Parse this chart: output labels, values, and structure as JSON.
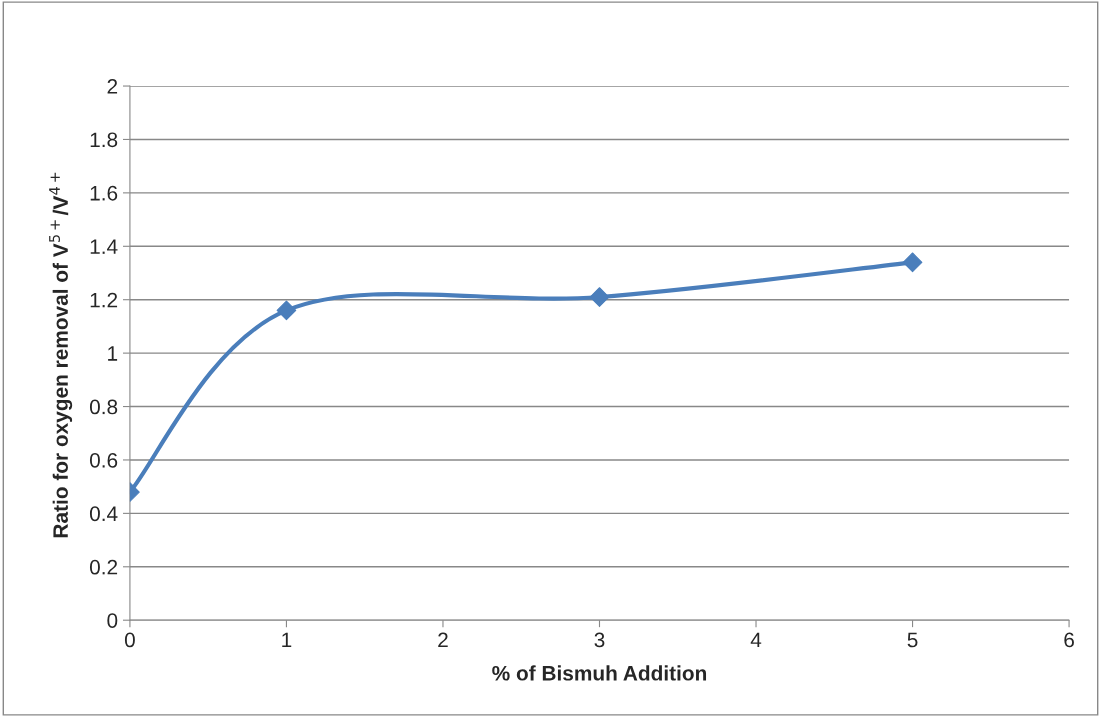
{
  "chart_data": {
    "type": "line",
    "xlabel": "% of Bismuh Addition",
    "ylabel": "Ratio for oxygen removal of V$^{5+}$/V$^{4+}$",
    "x": [
      0,
      1,
      3,
      5
    ],
    "series": [
      {
        "color": "#4a7ebb",
        "values": [
          0.48,
          1.16,
          1.21,
          1.34
        ]
      }
    ],
    "xlim": [
      0,
      6
    ],
    "xticks": [
      0,
      1,
      2,
      3,
      4,
      5,
      6
    ],
    "ylim": [
      0,
      2
    ],
    "yticks": [
      0,
      0.2,
      0.4,
      0.6,
      0.8,
      1,
      1.2,
      1.4,
      1.6,
      1.8,
      2
    ],
    "grid": "y",
    "marker": "diamond",
    "line_style": "solid",
    "legend": false
  }
}
